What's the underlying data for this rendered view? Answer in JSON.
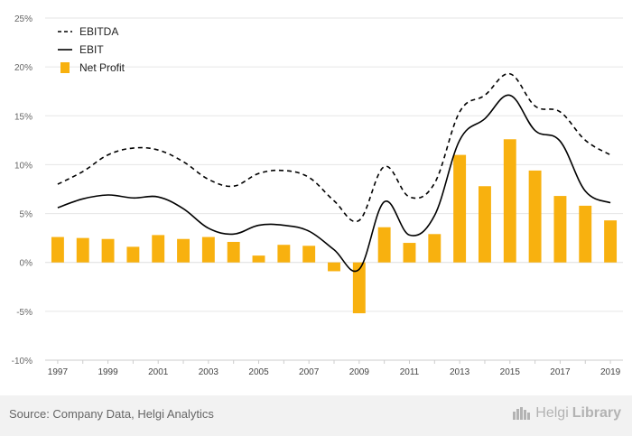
{
  "chart_data": {
    "type": "bar",
    "categories": [
      "1997",
      "1998",
      "1999",
      "2000",
      "2001",
      "2002",
      "2003",
      "2004",
      "2005",
      "2006",
      "2007",
      "2008",
      "2009",
      "2010",
      "2011",
      "2012",
      "2013",
      "2014",
      "2015",
      "2016",
      "2017",
      "2018",
      "2019"
    ],
    "x_tick_labels": [
      "1997",
      "1999",
      "2001",
      "2003",
      "2005",
      "2007",
      "2009",
      "2011",
      "2013",
      "2015",
      "2017",
      "2019"
    ],
    "y_tick_labels": [
      "25%",
      "20%",
      "15%",
      "10%",
      "5%",
      "0%",
      "-5%",
      "-10%"
    ],
    "y_ticks": [
      25,
      20,
      15,
      10,
      5,
      0,
      -5,
      -10
    ],
    "ylim": [
      -10,
      25
    ],
    "grid": true,
    "legend_position": "top-left",
    "series": [
      {
        "name": "EBITDA",
        "kind": "line",
        "style": "dashed",
        "color": "#000000",
        "values": [
          8.0,
          9.3,
          11.0,
          11.7,
          11.5,
          10.3,
          8.5,
          7.8,
          9.1,
          9.4,
          8.7,
          6.3,
          4.3,
          9.8,
          6.7,
          8.1,
          15.4,
          17.1,
          19.3,
          16.0,
          15.4,
          12.5,
          11.0
        ]
      },
      {
        "name": "EBIT",
        "kind": "line",
        "style": "solid",
        "color": "#000000",
        "values": [
          5.6,
          6.5,
          6.9,
          6.6,
          6.7,
          5.5,
          3.5,
          2.9,
          3.8,
          3.8,
          3.2,
          1.3,
          -0.7,
          6.2,
          2.8,
          4.8,
          12.5,
          14.7,
          17.1,
          13.5,
          12.4,
          7.3,
          6.1
        ]
      },
      {
        "name": "Net Profit",
        "kind": "bar",
        "color": "#f8b10f",
        "values": [
          2.6,
          2.5,
          2.4,
          1.6,
          2.8,
          2.4,
          2.6,
          2.1,
          0.7,
          1.8,
          1.7,
          -0.9,
          -5.2,
          3.6,
          2.0,
          2.9,
          11.0,
          7.8,
          12.6,
          9.4,
          6.8,
          5.8,
          4.3
        ]
      }
    ]
  },
  "footer": {
    "source": "Source: Company Data, Helgi Analytics",
    "brand_regular": "Helgi",
    "brand_bold": "Library"
  }
}
